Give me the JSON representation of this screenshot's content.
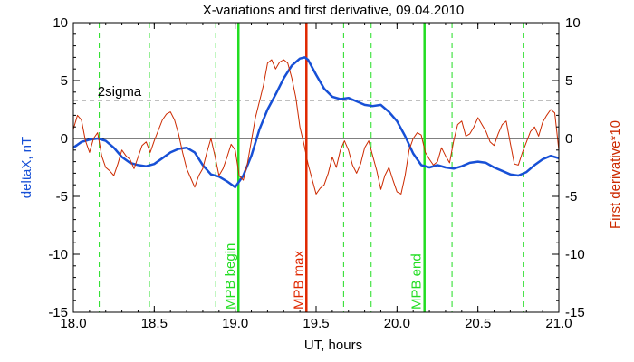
{
  "chart_data": {
    "type": "line",
    "title": "X-variations and first derivative, 09.04.2010",
    "xlabel": "UT, hours",
    "ylabel": "deltaX, nT",
    "ylabel_right": "First derivative*10",
    "xlim": [
      18.0,
      21.0
    ],
    "ylim": [
      -15,
      10
    ],
    "ylim_right": [
      -15,
      10
    ],
    "x_ticks": [
      18.0,
      18.5,
      19.0,
      19.5,
      20.0,
      20.5,
      21.0
    ],
    "x_tick_labels": [
      "18.0",
      "18.5",
      "19.0",
      "19.5",
      "20.0",
      "20.5",
      "21.0"
    ],
    "y_ticks": [
      10,
      5,
      0,
      -5,
      -10,
      -15
    ],
    "y_tick_labels": [
      "10",
      "5",
      "0",
      "-5",
      "-10",
      "-15"
    ],
    "y_tick_labels_right": [
      "10",
      "5",
      "0",
      "-5",
      "-10",
      "-15"
    ],
    "colors": {
      "deltaX": "#1750d6",
      "derivative": "#cc2a00",
      "marker_green": "#22dd22",
      "marker_red": "#e02800",
      "sigma": "#000000",
      "zero": "#000000"
    },
    "series": [
      {
        "id": "deltaX",
        "x": [
          18.0,
          18.05,
          18.1,
          18.15,
          18.2,
          18.25,
          18.3,
          18.35,
          18.4,
          18.45,
          18.5,
          18.55,
          18.6,
          18.65,
          18.7,
          18.75,
          18.8,
          18.85,
          18.9,
          18.95,
          19.0,
          19.05,
          19.1,
          19.15,
          19.2,
          19.25,
          19.3,
          19.35,
          19.4,
          19.43,
          19.45,
          19.5,
          19.55,
          19.6,
          19.65,
          19.7,
          19.75,
          19.8,
          19.85,
          19.9,
          19.95,
          20.0,
          20.05,
          20.1,
          20.15,
          20.2,
          20.25,
          20.3,
          20.35,
          20.4,
          20.45,
          20.5,
          20.55,
          20.6,
          20.65,
          20.7,
          20.75,
          20.8,
          20.85,
          20.9,
          20.95,
          21.0
        ],
        "values": [
          -0.8,
          -0.3,
          -0.1,
          0.0,
          -0.2,
          -0.8,
          -1.6,
          -2.1,
          -2.3,
          -2.4,
          -2.2,
          -1.7,
          -1.2,
          -0.9,
          -0.8,
          -1.2,
          -2.3,
          -3.1,
          -3.3,
          -3.7,
          -4.2,
          -3.2,
          -1.5,
          0.8,
          2.5,
          3.8,
          5.2,
          6.3,
          6.9,
          7.0,
          6.8,
          5.5,
          4.3,
          3.6,
          3.4,
          3.5,
          3.2,
          2.9,
          2.8,
          2.9,
          2.3,
          1.5,
          0.2,
          -1.3,
          -2.3,
          -2.5,
          -2.3,
          -2.5,
          -2.6,
          -2.4,
          -2.1,
          -2.0,
          -2.1,
          -2.5,
          -2.8,
          -3.1,
          -3.2,
          -2.9,
          -2.3,
          -1.8,
          -1.5,
          -1.7
        ]
      },
      {
        "id": "derivative",
        "x": [
          18.0,
          18.025,
          18.05,
          18.075,
          18.1,
          18.125,
          18.15,
          18.175,
          18.2,
          18.225,
          18.25,
          18.275,
          18.3,
          18.325,
          18.35,
          18.375,
          18.4,
          18.425,
          18.45,
          18.475,
          18.5,
          18.525,
          18.55,
          18.575,
          18.6,
          18.625,
          18.65,
          18.675,
          18.7,
          18.725,
          18.75,
          18.775,
          18.8,
          18.825,
          18.85,
          18.875,
          18.9,
          18.925,
          18.95,
          18.975,
          19.0,
          19.025,
          19.05,
          19.075,
          19.1,
          19.125,
          19.15,
          19.175,
          19.2,
          19.225,
          19.25,
          19.275,
          19.3,
          19.325,
          19.35,
          19.375,
          19.4,
          19.425,
          19.45,
          19.475,
          19.5,
          19.525,
          19.55,
          19.575,
          19.6,
          19.625,
          19.65,
          19.675,
          19.7,
          19.725,
          19.75,
          19.775,
          19.8,
          19.825,
          19.85,
          19.875,
          19.9,
          19.925,
          19.95,
          19.975,
          20.0,
          20.025,
          20.05,
          20.075,
          20.1,
          20.125,
          20.15,
          20.175,
          20.2,
          20.225,
          20.25,
          20.275,
          20.3,
          20.325,
          20.35,
          20.375,
          20.4,
          20.425,
          20.45,
          20.475,
          20.5,
          20.525,
          20.55,
          20.575,
          20.6,
          20.625,
          20.65,
          20.675,
          20.7,
          20.725,
          20.75,
          20.775,
          20.8,
          20.825,
          20.85,
          20.875,
          20.9,
          20.925,
          20.95,
          20.975,
          21.0
        ],
        "values": [
          0.8,
          2.0,
          1.6,
          -0.2,
          -1.2,
          0.0,
          0.5,
          -1.5,
          -2.5,
          -2.8,
          -3.2,
          -2.2,
          -1.0,
          -1.5,
          -1.8,
          -2.6,
          -1.6,
          -0.6,
          -0.3,
          -1.2,
          -0.2,
          0.7,
          1.6,
          2.1,
          2.3,
          1.6,
          0.4,
          -1.2,
          -2.6,
          -3.4,
          -4.2,
          -3.2,
          -2.6,
          -1.2,
          0.0,
          -1.5,
          -3.2,
          -2.6,
          -1.6,
          -0.5,
          -1.0,
          -3.2,
          -3.6,
          -2.2,
          -0.2,
          1.8,
          3.2,
          4.6,
          6.5,
          6.8,
          6.0,
          6.6,
          6.8,
          6.5,
          5.2,
          3.5,
          1.0,
          -0.5,
          -2.2,
          -3.5,
          -4.8,
          -4.3,
          -4.0,
          -3.0,
          -1.6,
          -2.5,
          -1.0,
          -0.2,
          -1.0,
          -2.3,
          -3.0,
          -2.2,
          -0.8,
          -0.2,
          -1.5,
          -2.8,
          -4.4,
          -3.2,
          -2.5,
          -3.6,
          -4.6,
          -4.8,
          -3.2,
          -1.0,
          0.0,
          0.5,
          0.3,
          -1.2,
          -1.8,
          -2.3,
          -2.0,
          -0.8,
          -1.5,
          -2.1,
          -0.2,
          1.2,
          1.5,
          0.2,
          0.4,
          1.0,
          1.8,
          1.2,
          0.6,
          -0.3,
          -0.6,
          0.4,
          1.2,
          1.5,
          -0.4,
          -2.2,
          -2.3,
          -1.2,
          -0.3,
          0.6,
          1.0,
          0.2,
          1.4,
          2.0,
          2.5,
          2.2,
          -1.0
        ]
      }
    ],
    "sigma_line": {
      "label": "2sigma",
      "value": 3.3
    },
    "zero_line": {
      "value": 0
    },
    "vertical_dashed": [
      18.16,
      18.47,
      18.88,
      19.67,
      19.84,
      20.34,
      20.78
    ],
    "markers": [
      {
        "label": "MPB begin",
        "x": 19.02,
        "color": "#22dd22"
      },
      {
        "label": "MPB max",
        "x": 19.44,
        "color": "#e02800"
      },
      {
        "label": "MPB end",
        "x": 20.17,
        "color": "#22dd22"
      }
    ]
  }
}
